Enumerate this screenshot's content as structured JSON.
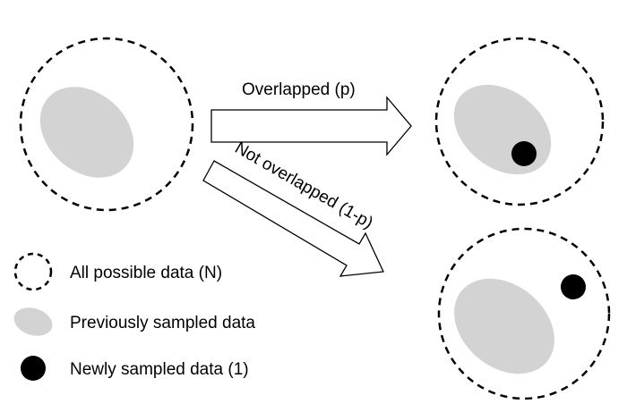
{
  "arrows": {
    "overlapped_label": "Overlapped (p)",
    "not_overlapped_label": "Not overlapped (1-p)"
  },
  "legend": {
    "items": [
      {
        "label": "All possible data (N)",
        "icon": "dashed-circle"
      },
      {
        "label": "Previously sampled data",
        "icon": "gray-ellipse"
      },
      {
        "label": "Newly sampled data (1)",
        "icon": "black-dot"
      }
    ]
  },
  "colors": {
    "population_outline": "#000000",
    "previously_sampled_fill": "#d3d3d3",
    "newly_sampled_fill": "#000000",
    "arrow_fill": "#ffffff",
    "arrow_stroke": "#000000"
  }
}
